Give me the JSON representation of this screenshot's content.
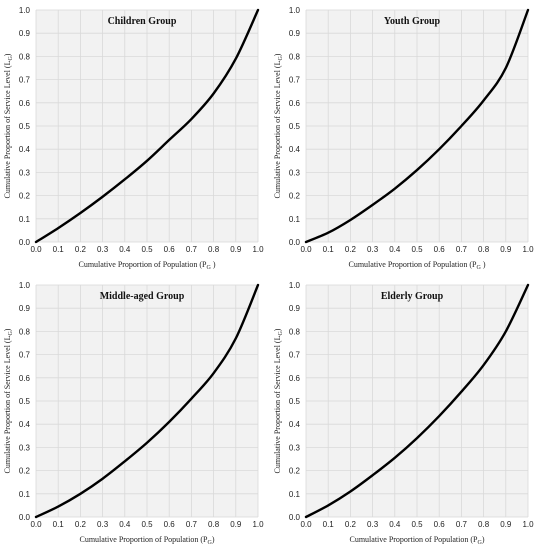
{
  "chart_data": [
    {
      "type": "line",
      "title": "Children Group",
      "xlabel": "Cumulative Proportion of Population (P",
      "xlabel_sub": "G",
      "xlabel_tail": " )",
      "ylabel": "Cumulative Proportion of Service Level (L",
      "ylabel_sub": "G",
      "ylabel_tail": ")",
      "xlim": [
        0,
        1
      ],
      "ylim": [
        0,
        1
      ],
      "xticks": [
        "0.0",
        "0.1",
        "0.2",
        "0.3",
        "0.4",
        "0.5",
        "0.6",
        "0.7",
        "0.8",
        "0.9",
        "1.0"
      ],
      "yticks": [
        "0.0",
        "0.1",
        "0.2",
        "0.3",
        "0.4",
        "0.5",
        "0.6",
        "0.7",
        "0.8",
        "0.9",
        "1.0"
      ],
      "grid": true,
      "series": [
        {
          "x": [
            0,
            0.1,
            0.2,
            0.3,
            0.4,
            0.5,
            0.6,
            0.7,
            0.8,
            0.9,
            1.0
          ],
          "y": [
            0,
            0.06,
            0.125,
            0.195,
            0.27,
            0.35,
            0.44,
            0.53,
            0.64,
            0.79,
            1.0
          ]
        }
      ]
    },
    {
      "type": "line",
      "title": "Youth Group",
      "xlabel": "Cumulative Proportion of Population (P",
      "xlabel_sub": "G",
      "xlabel_tail": " )",
      "ylabel": "Cumulative Proportion of Service Level (L",
      "ylabel_sub": "G",
      "ylabel_tail": ")",
      "xlim": [
        0,
        1
      ],
      "ylim": [
        0,
        1
      ],
      "xticks": [
        "0.0",
        "0.1",
        "0.2",
        "0.3",
        "0.4",
        "0.5",
        "0.6",
        "0.7",
        "0.8",
        "0.9",
        "1.0"
      ],
      "yticks": [
        "0.0",
        "0.1",
        "0.2",
        "0.3",
        "0.4",
        "0.5",
        "0.6",
        "0.7",
        "0.8",
        "0.9",
        "1.0"
      ],
      "grid": true,
      "series": [
        {
          "x": [
            0,
            0.1,
            0.2,
            0.3,
            0.4,
            0.5,
            0.6,
            0.7,
            0.8,
            0.9,
            1.0
          ],
          "y": [
            0,
            0.04,
            0.095,
            0.16,
            0.23,
            0.31,
            0.4,
            0.5,
            0.61,
            0.75,
            1.0
          ]
        }
      ]
    },
    {
      "type": "line",
      "title": "Middle-aged Group",
      "xlabel": "Cumulative Proportion of Population (P",
      "xlabel_sub": "G",
      "xlabel_tail": ")",
      "ylabel": "Cumulative Proportion of Service Level (L",
      "ylabel_sub": "G",
      "ylabel_tail": ")",
      "xlim": [
        0,
        1
      ],
      "ylim": [
        0,
        1
      ],
      "xticks": [
        "0.0",
        "0.1",
        "0.2",
        "0.3",
        "0.4",
        "0.5",
        "0.6",
        "0.7",
        "0.8",
        "0.9",
        "1.0"
      ],
      "yticks": [
        "0.0",
        "0.1",
        "0.2",
        "0.3",
        "0.4",
        "0.5",
        "0.6",
        "0.7",
        "0.8",
        "0.9",
        "1.0"
      ],
      "grid": true,
      "series": [
        {
          "x": [
            0,
            0.1,
            0.2,
            0.3,
            0.4,
            0.5,
            0.6,
            0.7,
            0.8,
            0.9,
            1.0
          ],
          "y": [
            0,
            0.045,
            0.1,
            0.165,
            0.24,
            0.32,
            0.41,
            0.51,
            0.62,
            0.77,
            1.0
          ]
        }
      ]
    },
    {
      "type": "line",
      "title": "Elderly Group",
      "xlabel": "Cumulative Proportion of Population (P",
      "xlabel_sub": "G",
      "xlabel_tail": ")",
      "ylabel": "Cumulative Proportion of Service Level (L",
      "ylabel_sub": "G",
      "ylabel_tail": ")",
      "xlim": [
        0,
        1
      ],
      "ylim": [
        0,
        1
      ],
      "xticks": [
        "0.0",
        "0.1",
        "0.2",
        "0.3",
        "0.4",
        "0.5",
        "0.6",
        "0.7",
        "0.8",
        "0.9",
        "1.0"
      ],
      "yticks": [
        "0.0",
        "0.1",
        "0.2",
        "0.3",
        "0.4",
        "0.5",
        "0.6",
        "0.7",
        "0.8",
        "0.9",
        "1.0"
      ],
      "grid": true,
      "series": [
        {
          "x": [
            0,
            0.1,
            0.2,
            0.3,
            0.4,
            0.5,
            0.6,
            0.7,
            0.8,
            0.9,
            1.0
          ],
          "y": [
            0,
            0.05,
            0.11,
            0.18,
            0.255,
            0.34,
            0.435,
            0.54,
            0.655,
            0.8,
            1.0
          ]
        }
      ]
    }
  ]
}
